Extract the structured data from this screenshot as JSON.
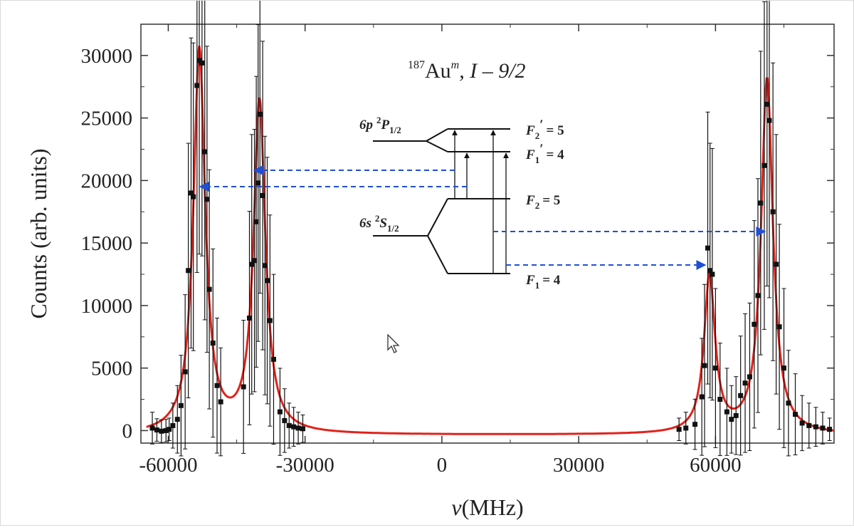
{
  "chart_data": {
    "type": "scatter",
    "title": "187Au^m, I - 9/2",
    "title_parts": {
      "mass": "187",
      "element": "Au",
      "isomer": "m",
      "spin": ", I – 9/2"
    },
    "xlabel": "(MHz)",
    "xlabel_symbol": "ν",
    "ylabel": "Counts (arb. units)",
    "xlim": [
      -66000,
      86000
    ],
    "ylim": [
      -1000,
      32500
    ],
    "x_ticks": [
      -60000,
      -30000,
      0,
      30000,
      60000
    ],
    "x_tick_labels": [
      "-60000",
      "-30000",
      "0",
      "30000",
      "60000"
    ],
    "y_ticks": [
      0,
      5000,
      10000,
      15000,
      20000,
      25000,
      30000
    ],
    "y_tick_labels": [
      "0",
      "5000",
      "10000",
      "15000",
      "20000",
      "25000",
      "30000"
    ],
    "grid": false,
    "series": [
      {
        "kind": "markers-with-errorbars",
        "color": "#111111",
        "points": [
          [
            -63500,
            200
          ],
          [
            -62500,
            50
          ],
          [
            -61500,
            -50
          ],
          [
            -60500,
            0
          ],
          [
            -59800,
            100
          ],
          [
            -59000,
            400
          ],
          [
            -58000,
            900
          ],
          [
            -57200,
            2000
          ],
          [
            -56300,
            4700
          ],
          [
            -55600,
            12800
          ],
          [
            -55000,
            19000
          ],
          [
            -54500,
            18700
          ],
          [
            -53700,
            27600
          ],
          [
            -53200,
            29600
          ],
          [
            -52600,
            29400
          ],
          [
            -52000,
            22300
          ],
          [
            -51500,
            18500
          ],
          [
            -51000,
            11300
          ],
          [
            -50200,
            7000
          ],
          [
            -49300,
            3600
          ],
          [
            -48500,
            2300
          ],
          [
            -43500,
            3500
          ],
          [
            -42200,
            9000
          ],
          [
            -41700,
            13300
          ],
          [
            -41100,
            13600
          ],
          [
            -40700,
            16700
          ],
          [
            -40300,
            19800
          ],
          [
            -39900,
            25300
          ],
          [
            -39300,
            18800
          ],
          [
            -38800,
            13200
          ],
          [
            -38300,
            12000
          ],
          [
            -37700,
            8800
          ],
          [
            -36900,
            5700
          ],
          [
            -35500,
            1500
          ],
          [
            -34500,
            800
          ],
          [
            -33500,
            400
          ],
          [
            -32500,
            300
          ],
          [
            -31500,
            200
          ],
          [
            -30500,
            150
          ],
          [
            52000,
            100
          ],
          [
            53500,
            200
          ],
          [
            55500,
            500
          ],
          [
            57000,
            2700
          ],
          [
            57600,
            5200
          ],
          [
            58300,
            14600
          ],
          [
            58800,
            12800
          ],
          [
            59300,
            12500
          ],
          [
            60000,
            5000
          ],
          [
            61000,
            2500
          ],
          [
            62500,
            1500
          ],
          [
            63500,
            900
          ],
          [
            64500,
            1200
          ],
          [
            65500,
            2800
          ],
          [
            66500,
            3800
          ],
          [
            67500,
            4300
          ],
          [
            68500,
            8500
          ],
          [
            69300,
            10800
          ],
          [
            69900,
            18200
          ],
          [
            70700,
            21200
          ],
          [
            71300,
            26100
          ],
          [
            71800,
            24800
          ],
          [
            72600,
            17500
          ],
          [
            73300,
            13300
          ],
          [
            74000,
            8300
          ],
          [
            75000,
            5000
          ],
          [
            76000,
            2200
          ],
          [
            77500,
            1300
          ],
          [
            79000,
            600
          ],
          [
            80500,
            400
          ],
          [
            82000,
            300
          ],
          [
            83500,
            200
          ],
          [
            85000,
            100
          ]
        ]
      },
      {
        "kind": "fit-line",
        "color": "#e0231c",
        "baseline": -350,
        "peaks": [
          {
            "center": -53200,
            "height": 30400,
            "hwhm": 1550
          },
          {
            "center": -40000,
            "height": 26200,
            "hwhm": 1550
          },
          {
            "center": 58700,
            "height": 12200,
            "hwhm": 1450
          },
          {
            "center": 71300,
            "height": 28100,
            "hwhm": 1550
          }
        ]
      }
    ]
  },
  "inset": {
    "upper_level": {
      "label": "6p",
      "term_sup": "2",
      "term": "P",
      "term_sub": "1/2"
    },
    "lower_level": {
      "label": "6s",
      "term_sup": "2",
      "term": "S",
      "term_sub": "1/2"
    },
    "sublevels": [
      {
        "F": "F",
        "sub": "2",
        "prime": "′",
        "value": "= 5"
      },
      {
        "F": "F",
        "sub": "1",
        "prime": "′",
        "value": "= 4"
      },
      {
        "F": "F",
        "sub": "2",
        "prime": "",
        "value": "= 5"
      },
      {
        "F": "F",
        "sub": "1",
        "prime": "",
        "value": "= 4"
      }
    ],
    "colors": {
      "levels": "#111111",
      "arrows": "#1f4fd6"
    }
  }
}
